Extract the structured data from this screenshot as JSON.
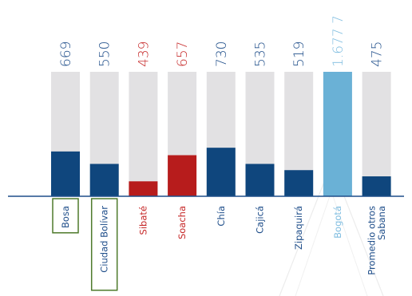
{
  "chart_data": {
    "type": "bar",
    "title": "",
    "xlabel": "",
    "ylabel": "",
    "categories": [
      "Bosa",
      "Ciudad Bolívar",
      "Sibaté",
      "Soacha",
      "Chía",
      "Cajicá",
      "Zipaquirá",
      "Bogotá",
      "Promedio otros Sabana"
    ],
    "value_labels": [
      "669",
      "550",
      "439",
      "657",
      "730",
      "535",
      "519",
      "1.677 7",
      "475"
    ],
    "values": [
      669,
      550,
      439,
      657,
      730,
      535,
      519,
      1677.7,
      475
    ],
    "filled_fraction": [
      0.36,
      0.26,
      0.12,
      0.33,
      0.39,
      0.26,
      0.21,
      1.0,
      0.16
    ],
    "boxed_categories": [
      "Bosa",
      "Ciudad Bolívar"
    ],
    "colors": {
      "bar_track": "#e2e1e3",
      "bar_default": "#0f467d",
      "bar_highlight": "#b71c1c",
      "bar_bogota": "#6ab1d6",
      "label_default": "#1f4e8a",
      "label_highlight": "#c62828",
      "label_bogota": "#7fbde0",
      "box_outline": "#4e7a2b",
      "axis": "#1f4e8a"
    },
    "bar_color_keys": [
      "bar_default",
      "bar_default",
      "bar_highlight",
      "bar_highlight",
      "bar_default",
      "bar_default",
      "bar_default",
      "bar_bogota",
      "bar_default"
    ],
    "label_color_keys": [
      "label_default",
      "label_default",
      "label_highlight",
      "label_highlight",
      "label_default",
      "label_default",
      "label_default",
      "label_bogota",
      "label_default"
    ]
  }
}
